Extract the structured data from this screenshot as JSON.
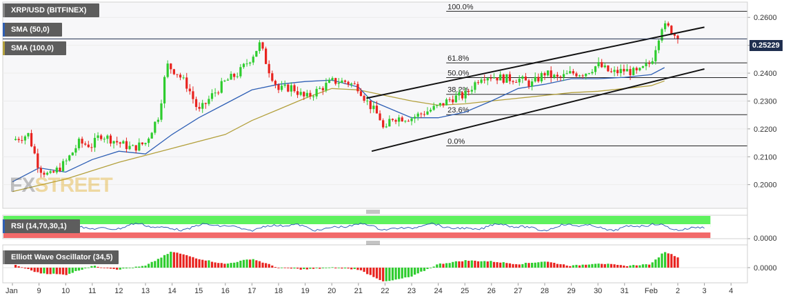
{
  "legend": {
    "symbol": "XRP/USD (BITFINEX)",
    "sma50": "SMA (50,0)",
    "sma100": "SMA (100,0)",
    "rsi": "RSI (14,70,30,1)",
    "ewo": "Elliott Wave Oscillator (34,5)"
  },
  "watermark": {
    "fx": "FX",
    "street": "STREET"
  },
  "current_price": "0.25229",
  "colors": {
    "up": "#2ecc2e",
    "down": "#e8231f",
    "sma50": "#2e5fb5",
    "sma100": "#b3a03c",
    "channel": "#111111",
    "rsi_line": "#2e5fb5",
    "rsi_upper": "#5ef25e",
    "rsi_lower": "#f26a6a",
    "price_line": "#1f2e4f"
  },
  "chart_data": [
    {
      "type": "candlestick",
      "title": "XRP/USD (BITFINEX)",
      "x_ticks": [
        "Jan",
        "9",
        "10",
        "11",
        "12",
        "13",
        "14",
        "15",
        "16",
        "17",
        "18",
        "19",
        "20",
        "21",
        "22",
        "23",
        "24",
        "25",
        "26",
        "27",
        "28",
        "29",
        "30",
        "31",
        "Feb",
        "2",
        "3",
        "4"
      ],
      "y_ticks": [
        "0.2000",
        "0.2100",
        "0.2200",
        "0.2300",
        "0.2400",
        "0.2500",
        "0.2600"
      ],
      "ylim": [
        0.1915,
        0.2655
      ],
      "last_price": 0.25229,
      "close_path": [
        [
          0,
          0.216
        ],
        [
          0.6,
          0.218
        ],
        [
          1.0,
          0.206
        ],
        [
          1.4,
          0.203
        ],
        [
          2.0,
          0.208
        ],
        [
          2.5,
          0.215
        ],
        [
          3.0,
          0.214
        ],
        [
          3.3,
          0.218
        ],
        [
          4.0,
          0.215
        ],
        [
          4.5,
          0.213
        ],
        [
          5.0,
          0.215
        ],
        [
          5.5,
          0.225
        ],
        [
          5.8,
          0.243
        ],
        [
          6.2,
          0.24
        ],
        [
          6.6,
          0.235
        ],
        [
          7.0,
          0.226
        ],
        [
          7.5,
          0.232
        ],
        [
          8.0,
          0.237
        ],
        [
          8.5,
          0.24
        ],
        [
          9.0,
          0.246
        ],
        [
          9.3,
          0.2505
        ],
        [
          9.6,
          0.242
        ],
        [
          10.0,
          0.234
        ],
        [
          10.5,
          0.235
        ],
        [
          11.0,
          0.231
        ],
        [
          11.5,
          0.234
        ],
        [
          12.0,
          0.237
        ],
        [
          12.5,
          0.237
        ],
        [
          13.0,
          0.235
        ],
        [
          13.3,
          0.23
        ],
        [
          13.8,
          0.224
        ],
        [
          14.0,
          0.218
        ],
        [
          14.2,
          0.224
        ],
        [
          15.0,
          0.224
        ],
        [
          15.5,
          0.226
        ],
        [
          16.0,
          0.228
        ],
        [
          16.5,
          0.231
        ],
        [
          17.0,
          0.232
        ],
        [
          17.6,
          0.239
        ],
        [
          18.0,
          0.239
        ],
        [
          18.5,
          0.238
        ],
        [
          19.0,
          0.238
        ],
        [
          19.5,
          0.236
        ],
        [
          20.0,
          0.24
        ],
        [
          20.5,
          0.238
        ],
        [
          21.0,
          0.24
        ],
        [
          21.5,
          0.24
        ],
        [
          22.0,
          0.243
        ],
        [
          22.5,
          0.24
        ],
        [
          23.0,
          0.241
        ],
        [
          23.5,
          0.24
        ],
        [
          24.0,
          0.244
        ],
        [
          24.4,
          0.257
        ],
        [
          24.7,
          0.256
        ],
        [
          25.0,
          0.2523
        ]
      ],
      "sma50_path": [
        [
          0,
          0.201
        ],
        [
          1.0,
          0.206
        ],
        [
          2.0,
          0.2045
        ],
        [
          3.0,
          0.209
        ],
        [
          4.0,
          0.212
        ],
        [
          5.0,
          0.211
        ],
        [
          6.0,
          0.218
        ],
        [
          7.0,
          0.224
        ],
        [
          8.0,
          0.229
        ],
        [
          9.0,
          0.234
        ],
        [
          10.0,
          0.236
        ],
        [
          11.0,
          0.237
        ],
        [
          12.0,
          0.2375
        ],
        [
          13.0,
          0.235
        ],
        [
          13.5,
          0.23
        ],
        [
          14.0,
          0.228
        ],
        [
          15.0,
          0.224
        ],
        [
          16.0,
          0.224
        ],
        [
          17.0,
          0.226
        ],
        [
          18.0,
          0.23
        ],
        [
          19.0,
          0.2345
        ],
        [
          20.0,
          0.236
        ],
        [
          21.0,
          0.238
        ],
        [
          22.0,
          0.238
        ],
        [
          23.0,
          0.2385
        ],
        [
          24.0,
          0.2395
        ],
        [
          24.5,
          0.242
        ]
      ],
      "sma100_path": [
        [
          0,
          0.1975
        ],
        [
          2.0,
          0.202
        ],
        [
          4.0,
          0.208
        ],
        [
          6.0,
          0.213
        ],
        [
          8.0,
          0.218
        ],
        [
          9.0,
          0.223
        ],
        [
          10.0,
          0.227
        ],
        [
          11.0,
          0.231
        ],
        [
          12.0,
          0.2345
        ],
        [
          13.0,
          0.234
        ],
        [
          14.0,
          0.232
        ],
        [
          15.0,
          0.23
        ],
        [
          16.0,
          0.2285
        ],
        [
          17.0,
          0.229
        ],
        [
          18.0,
          0.23
        ],
        [
          19.0,
          0.231
        ],
        [
          20.0,
          0.232
        ],
        [
          21.0,
          0.233
        ],
        [
          22.0,
          0.2335
        ],
        [
          23.0,
          0.2345
        ],
        [
          24.0,
          0.2355
        ],
        [
          24.5,
          0.2372
        ]
      ],
      "channel_upper": [
        [
          13.3,
          0.231
        ],
        [
          26.0,
          0.2565
        ]
      ],
      "channel_lower": [
        [
          13.5,
          0.212
        ],
        [
          26.0,
          0.2415
        ]
      ],
      "fibonacci": [
        {
          "label": "100.0%",
          "value": 0.2622
        },
        {
          "label": "61.8%",
          "value": 0.2437
        },
        {
          "label": "50.0%",
          "value": 0.2384
        },
        {
          "label": "38.2%",
          "value": 0.2324
        },
        {
          "label": "23.6%",
          "value": 0.2251
        },
        {
          "label": "0.0%",
          "value": 0.2139
        }
      ]
    },
    {
      "type": "line",
      "title": "RSI (14,70,30,1)",
      "y_ticks": [
        "0.0000"
      ],
      "bands": [
        "overbought",
        "oversold"
      ]
    },
    {
      "type": "bar",
      "title": "Elliott Wave Oscillator (34,5)",
      "y_ticks": [
        "0.0000"
      ],
      "wave_path": [
        [
          0,
          0.2
        ],
        [
          1.0,
          -0.3
        ],
        [
          2.0,
          -0.4
        ],
        [
          3.0,
          0.1
        ],
        [
          4.0,
          -0.1
        ],
        [
          5.0,
          0.1
        ],
        [
          6.0,
          0.9
        ],
        [
          7.0,
          0.5
        ],
        [
          8.0,
          0.2
        ],
        [
          9.0,
          0.5
        ],
        [
          10.0,
          0.0
        ],
        [
          11.0,
          -0.1
        ],
        [
          12.0,
          0.0
        ],
        [
          13.0,
          -0.1
        ],
        [
          14.0,
          -0.8
        ],
        [
          15.0,
          -0.5
        ],
        [
          16.0,
          0.2
        ],
        [
          17.0,
          0.4
        ],
        [
          18.0,
          0.35
        ],
        [
          19.0,
          0.2
        ],
        [
          20.0,
          0.35
        ],
        [
          21.0,
          0.1
        ],
        [
          22.0,
          0.25
        ],
        [
          23.0,
          0.1
        ],
        [
          24.0,
          0.2
        ],
        [
          24.5,
          0.9
        ],
        [
          25.0,
          0.6
        ]
      ]
    }
  ]
}
